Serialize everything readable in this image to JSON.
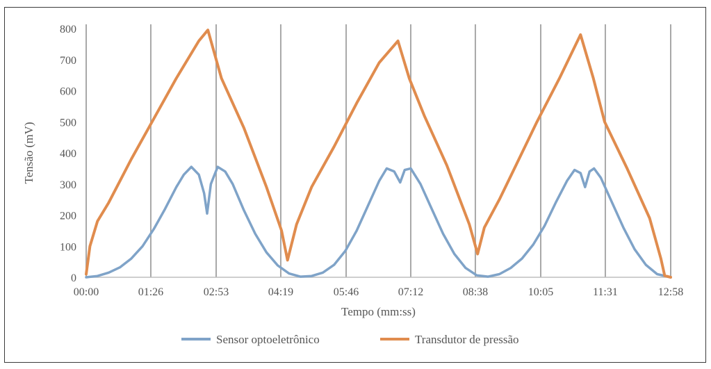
{
  "chart_data": {
    "type": "line",
    "xlabel": "Tempo (mm:ss)",
    "ylabel": "Tensão (mV)",
    "x_unit": "mm:ss",
    "xlim": [
      "00:00",
      "12:58"
    ],
    "ylim": [
      0,
      800
    ],
    "y_ticks": [
      0,
      100,
      200,
      300,
      400,
      500,
      600,
      700,
      800
    ],
    "x_ticks": [
      "00:00",
      "01:26",
      "02:53",
      "04:19",
      "05:46",
      "07:12",
      "08:38",
      "10:05",
      "11:31",
      "12:58"
    ],
    "vertical_grid": true,
    "horizontal_grid": false,
    "legend_position": "bottom",
    "series": [
      {
        "name": "Sensor optoeletrônico",
        "color": "#7fa3c8",
        "points": [
          [
            "00:00",
            0
          ],
          [
            "00:15",
            4
          ],
          [
            "00:30",
            15
          ],
          [
            "00:45",
            32
          ],
          [
            "01:00",
            60
          ],
          [
            "01:15",
            100
          ],
          [
            "01:30",
            155
          ],
          [
            "01:45",
            220
          ],
          [
            "02:00",
            290
          ],
          [
            "02:10",
            330
          ],
          [
            "02:20",
            355
          ],
          [
            "02:30",
            330
          ],
          [
            "02:37",
            270
          ],
          [
            "02:41",
            205
          ],
          [
            "02:46",
            300
          ],
          [
            "02:55",
            355
          ],
          [
            "03:05",
            340
          ],
          [
            "03:15",
            300
          ],
          [
            "03:30",
            215
          ],
          [
            "03:45",
            140
          ],
          [
            "04:00",
            80
          ],
          [
            "04:15",
            38
          ],
          [
            "04:30",
            12
          ],
          [
            "04:45",
            2
          ],
          [
            "05:00",
            4
          ],
          [
            "05:15",
            15
          ],
          [
            "05:30",
            40
          ],
          [
            "05:45",
            85
          ],
          [
            "06:00",
            150
          ],
          [
            "06:15",
            230
          ],
          [
            "06:30",
            310
          ],
          [
            "06:40",
            350
          ],
          [
            "06:50",
            340
          ],
          [
            "06:58",
            305
          ],
          [
            "07:04",
            345
          ],
          [
            "07:12",
            350
          ],
          [
            "07:25",
            300
          ],
          [
            "07:40",
            220
          ],
          [
            "07:55",
            140
          ],
          [
            "08:10",
            75
          ],
          [
            "08:25",
            30
          ],
          [
            "08:40",
            6
          ],
          [
            "08:55",
            2
          ],
          [
            "09:10",
            10
          ],
          [
            "09:25",
            30
          ],
          [
            "09:40",
            60
          ],
          [
            "09:55",
            105
          ],
          [
            "10:10",
            165
          ],
          [
            "10:25",
            240
          ],
          [
            "10:40",
            310
          ],
          [
            "10:50",
            345
          ],
          [
            "10:58",
            335
          ],
          [
            "11:04",
            290
          ],
          [
            "11:10",
            340
          ],
          [
            "11:16",
            350
          ],
          [
            "11:25",
            320
          ],
          [
            "11:40",
            240
          ],
          [
            "11:55",
            160
          ],
          [
            "12:10",
            90
          ],
          [
            "12:25",
            40
          ],
          [
            "12:40",
            10
          ],
          [
            "12:58",
            0
          ]
        ]
      },
      {
        "name": "Transdutor de pressão",
        "color": "#e08c4e",
        "points": [
          [
            "00:00",
            10
          ],
          [
            "00:05",
            100
          ],
          [
            "00:15",
            180
          ],
          [
            "00:30",
            240
          ],
          [
            "01:00",
            380
          ],
          [
            "01:30",
            510
          ],
          [
            "02:00",
            640
          ],
          [
            "02:30",
            760
          ],
          [
            "02:42",
            795
          ],
          [
            "03:00",
            640
          ],
          [
            "03:30",
            480
          ],
          [
            "04:00",
            290
          ],
          [
            "04:20",
            150
          ],
          [
            "04:28",
            55
          ],
          [
            "04:40",
            170
          ],
          [
            "05:00",
            290
          ],
          [
            "05:30",
            420
          ],
          [
            "06:00",
            560
          ],
          [
            "06:30",
            690
          ],
          [
            "06:55",
            760
          ],
          [
            "07:10",
            640
          ],
          [
            "07:30",
            520
          ],
          [
            "08:00",
            360
          ],
          [
            "08:30",
            170
          ],
          [
            "08:41",
            75
          ],
          [
            "08:50",
            160
          ],
          [
            "09:10",
            250
          ],
          [
            "09:30",
            350
          ],
          [
            "10:00",
            500
          ],
          [
            "10:30",
            640
          ],
          [
            "10:58",
            780
          ],
          [
            "11:15",
            640
          ],
          [
            "11:30",
            500
          ],
          [
            "12:00",
            350
          ],
          [
            "12:30",
            190
          ],
          [
            "12:45",
            60
          ],
          [
            "12:50",
            5
          ],
          [
            "12:58",
            0
          ]
        ]
      }
    ]
  }
}
